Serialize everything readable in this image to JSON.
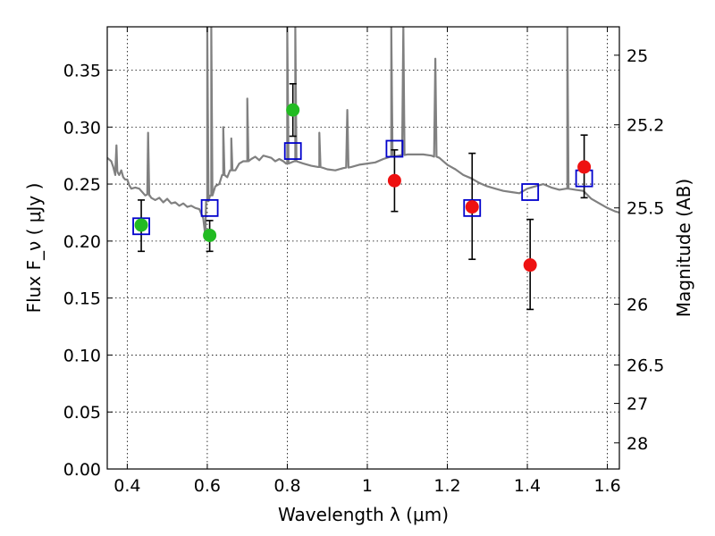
{
  "chart_data": {
    "type": "scatter",
    "title": "",
    "xlabel": "Wavelength  λ (μm)",
    "ylabel": "Flux  F_ν  ( μJy )",
    "ylabel_right": "Magnitude (AB)",
    "xlim": [
      0.35,
      1.63
    ],
    "ylim": [
      0,
      0.388
    ],
    "x_ticks": [
      {
        "value": 0.4,
        "label": "0.4"
      },
      {
        "value": 0.6,
        "label": "0.6"
      },
      {
        "value": 0.8,
        "label": "0.8"
      },
      {
        "value": 1.0,
        "label": "1"
      },
      {
        "value": 1.2,
        "label": "1.2"
      },
      {
        "value": 1.4,
        "label": "1.4"
      },
      {
        "value": 1.6,
        "label": "1.6"
      }
    ],
    "y_ticks": [
      {
        "value": 0.0,
        "label": "0.00"
      },
      {
        "value": 0.05,
        "label": "0.05"
      },
      {
        "value": 0.1,
        "label": "0.10"
      },
      {
        "value": 0.15,
        "label": "0.15"
      },
      {
        "value": 0.2,
        "label": "0.20"
      },
      {
        "value": 0.25,
        "label": "0.25"
      },
      {
        "value": 0.3,
        "label": "0.30"
      },
      {
        "value": 0.35,
        "label": "0.35"
      }
    ],
    "right_ticks": [
      {
        "value": 25.0,
        "label": "25"
      },
      {
        "value": 25.2,
        "label": "25.2"
      },
      {
        "value": 25.5,
        "label": "25.5"
      },
      {
        "value": 26.0,
        "label": "26"
      },
      {
        "value": 26.5,
        "label": "26.5"
      },
      {
        "value": 27.0,
        "label": "27"
      },
      {
        "value": 28.0,
        "label": "28"
      }
    ],
    "grid": true,
    "colors": {
      "model": "#808080",
      "model_photometry": "#0000cc",
      "green_points": "#22bb22",
      "red_points": "#ee1111",
      "errorbar": "#000000"
    },
    "model_spectrum": [
      [
        0.35,
        0.273
      ],
      [
        0.36,
        0.27
      ],
      [
        0.365,
        0.265
      ],
      [
        0.37,
        0.258
      ],
      [
        0.375,
        0.262
      ],
      [
        0.38,
        0.258
      ],
      [
        0.385,
        0.262
      ],
      [
        0.39,
        0.256
      ],
      [
        0.395,
        0.254
      ],
      [
        0.4,
        0.254
      ],
      [
        0.405,
        0.249
      ],
      [
        0.41,
        0.246
      ],
      [
        0.42,
        0.247
      ],
      [
        0.43,
        0.246
      ],
      [
        0.44,
        0.242
      ],
      [
        0.445,
        0.24
      ],
      [
        0.45,
        0.241
      ],
      [
        0.455,
        0.24
      ],
      [
        0.46,
        0.238
      ],
      [
        0.47,
        0.236
      ],
      [
        0.48,
        0.238
      ],
      [
        0.49,
        0.234
      ],
      [
        0.5,
        0.237
      ],
      [
        0.51,
        0.233
      ],
      [
        0.52,
        0.234
      ],
      [
        0.53,
        0.231
      ],
      [
        0.54,
        0.233
      ],
      [
        0.55,
        0.23
      ],
      [
        0.56,
        0.231
      ],
      [
        0.57,
        0.229
      ],
      [
        0.58,
        0.228
      ],
      [
        0.59,
        0.22
      ],
      [
        0.595,
        0.205
      ],
      [
        0.6,
        0.235
      ],
      [
        0.61,
        0.24
      ],
      [
        0.62,
        0.248
      ],
      [
        0.63,
        0.25
      ],
      [
        0.64,
        0.258
      ],
      [
        0.65,
        0.256
      ],
      [
        0.66,
        0.262
      ],
      [
        0.67,
        0.262
      ],
      [
        0.68,
        0.268
      ],
      [
        0.69,
        0.27
      ],
      [
        0.7,
        0.27
      ],
      [
        0.71,
        0.272
      ],
      [
        0.72,
        0.274
      ],
      [
        0.73,
        0.271
      ],
      [
        0.74,
        0.275
      ],
      [
        0.75,
        0.274
      ],
      [
        0.76,
        0.273
      ],
      [
        0.77,
        0.27
      ],
      [
        0.78,
        0.272
      ],
      [
        0.79,
        0.27
      ],
      [
        0.8,
        0.268
      ],
      [
        0.82,
        0.27
      ],
      [
        0.84,
        0.268
      ],
      [
        0.86,
        0.266
      ],
      [
        0.88,
        0.265
      ],
      [
        0.9,
        0.263
      ],
      [
        0.92,
        0.262
      ],
      [
        0.94,
        0.264
      ],
      [
        0.96,
        0.265
      ],
      [
        0.98,
        0.267
      ],
      [
        1.0,
        0.268
      ],
      [
        1.02,
        0.269
      ],
      [
        1.04,
        0.272
      ],
      [
        1.06,
        0.274
      ],
      [
        1.08,
        0.275
      ],
      [
        1.1,
        0.276
      ],
      [
        1.12,
        0.276
      ],
      [
        1.14,
        0.276
      ],
      [
        1.16,
        0.275
      ],
      [
        1.18,
        0.273
      ],
      [
        1.2,
        0.267
      ],
      [
        1.22,
        0.263
      ],
      [
        1.24,
        0.258
      ],
      [
        1.26,
        0.255
      ],
      [
        1.28,
        0.251
      ],
      [
        1.3,
        0.248
      ],
      [
        1.32,
        0.246
      ],
      [
        1.34,
        0.244
      ],
      [
        1.36,
        0.243
      ],
      [
        1.38,
        0.242
      ],
      [
        1.4,
        0.246
      ],
      [
        1.42,
        0.248
      ],
      [
        1.44,
        0.25
      ],
      [
        1.46,
        0.247
      ],
      [
        1.48,
        0.245
      ],
      [
        1.5,
        0.246
      ],
      [
        1.52,
        0.245
      ],
      [
        1.54,
        0.244
      ],
      [
        1.56,
        0.237
      ],
      [
        1.58,
        0.233
      ],
      [
        1.6,
        0.229
      ],
      [
        1.62,
        0.226
      ],
      [
        1.63,
        0.225
      ]
    ],
    "model_spikes": [
      {
        "x": 0.373,
        "y": 0.284
      },
      {
        "x": 0.452,
        "y": 0.295
      },
      {
        "x": 0.6,
        "y": 0.388
      },
      {
        "x": 0.61,
        "y": 0.388
      },
      {
        "x": 0.64,
        "y": 0.3
      },
      {
        "x": 0.66,
        "y": 0.29
      },
      {
        "x": 0.7,
        "y": 0.325
      },
      {
        "x": 0.8,
        "y": 0.388
      },
      {
        "x": 0.82,
        "y": 0.388
      },
      {
        "x": 0.88,
        "y": 0.295
      },
      {
        "x": 0.95,
        "y": 0.315
      },
      {
        "x": 1.06,
        "y": 0.388
      },
      {
        "x": 1.09,
        "y": 0.388
      },
      {
        "x": 1.17,
        "y": 0.36
      },
      {
        "x": 1.5,
        "y": 0.388
      }
    ],
    "model_photometry": [
      {
        "x": 0.435,
        "y": 0.213
      },
      {
        "x": 0.606,
        "y": 0.229
      },
      {
        "x": 0.814,
        "y": 0.279
      },
      {
        "x": 1.068,
        "y": 0.281
      },
      {
        "x": 1.262,
        "y": 0.229
      },
      {
        "x": 1.407,
        "y": 0.243
      },
      {
        "x": 1.542,
        "y": 0.255
      }
    ],
    "observed_green": [
      {
        "x": 0.435,
        "y": 0.214,
        "err_low": 0.191,
        "err_high": 0.236
      },
      {
        "x": 0.606,
        "y": 0.205,
        "err_low": 0.191,
        "err_high": 0.218
      },
      {
        "x": 0.814,
        "y": 0.315,
        "err_low": 0.292,
        "err_high": 0.338
      }
    ],
    "observed_red": [
      {
        "x": 1.068,
        "y": 0.253,
        "err_low": 0.226,
        "err_high": 0.28
      },
      {
        "x": 1.262,
        "y": 0.23,
        "err_low": 0.184,
        "err_high": 0.277
      },
      {
        "x": 1.407,
        "y": 0.179,
        "err_low": 0.14,
        "err_high": 0.219
      },
      {
        "x": 1.542,
        "y": 0.265,
        "err_low": 0.238,
        "err_high": 0.293
      }
    ]
  }
}
